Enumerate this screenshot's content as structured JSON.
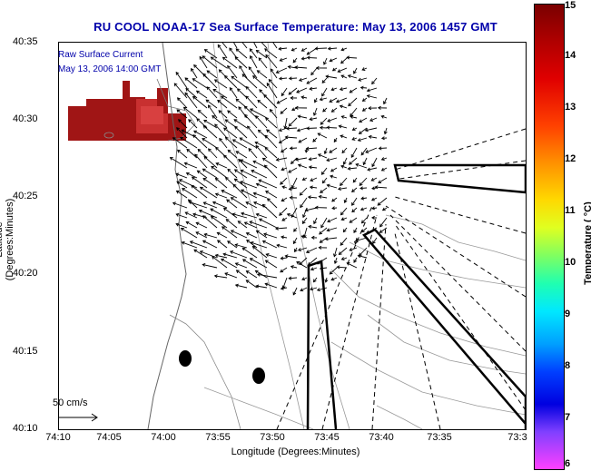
{
  "title": "RU COOL  NOAA-17  Sea Surface Temperature:  May 13, 2006 1457 GMT",
  "annotation": {
    "line1": "Raw Surface Current",
    "line2": "May 13, 2006 14:00 GMT"
  },
  "axes": {
    "ylabel": "Latitude (Degrees:Minutes)",
    "xlabel": "Longitude (Degrees:Minutes)",
    "yticks": [
      "40:35",
      "40:30",
      "40:25",
      "40:20",
      "40:15",
      "40:10"
    ],
    "xticks": [
      "74:10",
      "74:05",
      "74:00",
      "73:55",
      "73:50",
      "73:45",
      "73:40",
      "73:35",
      "73:3"
    ]
  },
  "scale_label": "50 cm/s",
  "colorbar": {
    "label": "Temperature ( °C)",
    "ticks": [
      "15",
      "14",
      "13",
      "12",
      "11",
      "10",
      "9",
      "8",
      "7",
      "6"
    ],
    "min": 6,
    "max": 15,
    "colors": [
      "#7a0000",
      "#e00000",
      "#ff9000",
      "#ffd800",
      "#80ff60",
      "#00e8ff",
      "#0040ff",
      "#8040ff",
      "#ff40ff"
    ]
  },
  "sst_patch_color": "#b01010"
}
